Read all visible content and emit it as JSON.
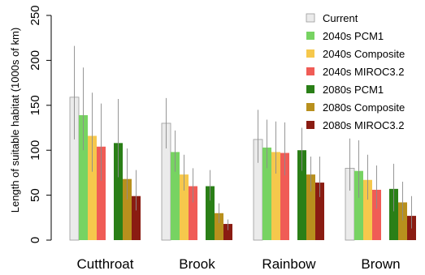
{
  "chart_data": {
    "type": "bar",
    "ylabel": "Length of suitable habitat (1000s of km)",
    "xlabel": "",
    "ylim": [
      0,
      250
    ],
    "yticks": [
      0,
      50,
      100,
      150,
      200,
      250
    ],
    "grid": false,
    "legend_position": "top-right",
    "categories": [
      "Cutthroat",
      "Brook",
      "Rainbow",
      "Brown"
    ],
    "series": [
      {
        "name": "Current",
        "color": "#ebebeb",
        "values": [
          159,
          130,
          112,
          80
        ],
        "upper": [
          216,
          158,
          145,
          113
        ],
        "lower": [
          112,
          102,
          86,
          55
        ]
      },
      {
        "name": "2040s PCM1",
        "color": "#77d362",
        "values": [
          139,
          98,
          103,
          77
        ],
        "upper": [
          192,
          122,
          134,
          111
        ],
        "lower": [
          100,
          76,
          80,
          47
        ]
      },
      {
        "name": "2040s Composite",
        "color": "#f6c84c",
        "values": [
          116,
          73,
          98,
          67
        ],
        "upper": [
          164,
          95,
          132,
          95
        ],
        "lower": [
          76,
          55,
          74,
          45
        ]
      },
      {
        "name": "2040s MIROC3.2",
        "color": "#f05c56",
        "values": [
          104,
          60,
          97,
          56
        ],
        "upper": [
          152,
          80,
          131,
          83
        ],
        "lower": [
          66,
          42,
          72,
          35
        ]
      },
      {
        "name": "2080s PCM1",
        "color": "#2a7f17",
        "values": [
          108,
          60,
          100,
          57
        ],
        "upper": [
          157,
          78,
          125,
          85
        ],
        "lower": [
          70,
          44,
          77,
          32
        ]
      },
      {
        "name": "2080s Composite",
        "color": "#b8901d",
        "values": [
          68,
          30,
          73,
          42
        ],
        "upper": [
          102,
          41,
          93,
          65
        ],
        "lower": [
          45,
          19,
          54,
          22
        ]
      },
      {
        "name": "2080s MIROC3.2",
        "color": "#8a1c12",
        "values": [
          49,
          18,
          64,
          27
        ],
        "upper": [
          78,
          23,
          93,
          49
        ],
        "lower": [
          33,
          11,
          48,
          13
        ]
      }
    ]
  }
}
